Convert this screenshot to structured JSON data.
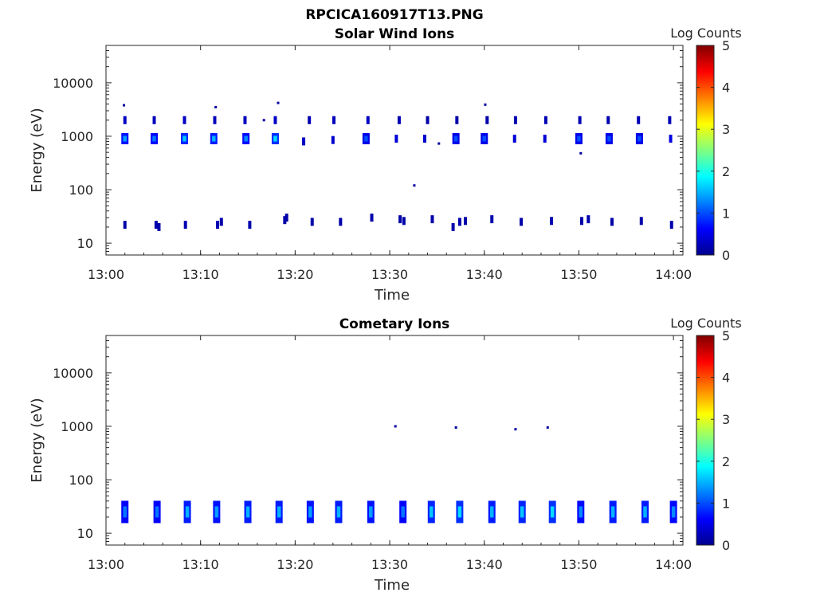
{
  "figure_title": "RPCICA160917T13.PNG",
  "colorbar": {
    "label": "Log Counts",
    "range": [
      0,
      5
    ],
    "ticks": [
      "0",
      "1",
      "2",
      "3",
      "4",
      "5"
    ],
    "colormap": [
      "#00008f",
      "#0000ff",
      "#0080ff",
      "#00ffff",
      "#80ff80",
      "#ffff00",
      "#ff8000",
      "#ff0000",
      "#800000"
    ]
  },
  "chart_data": [
    {
      "type": "heatmap",
      "title": "Solar Wind Ions",
      "xlabel": "Time",
      "ylabel": "Energy (eV)",
      "xlim": [
        "13:00",
        "14:01"
      ],
      "ylim": [
        6,
        50000
      ],
      "yscale": "log",
      "xticks": [
        "13:00",
        "13:10",
        "13:20",
        "13:30",
        "13:40",
        "13:50",
        "14:00"
      ],
      "yticks": [
        "10",
        "100",
        "1000",
        "10000"
      ],
      "value_label": "Log Counts",
      "cells": [
        [
          2.0,
          2000,
          0.6
        ],
        [
          2.0,
          900,
          1.4
        ],
        [
          2.0,
          22,
          0.3
        ],
        [
          1.9,
          3800,
          0.2
        ],
        [
          5.1,
          2000,
          0.5
        ],
        [
          5.1,
          900,
          1.2
        ],
        [
          5.3,
          22,
          0.3
        ],
        [
          5.6,
          20,
          0.3
        ],
        [
          8.3,
          2000,
          0.6
        ],
        [
          8.3,
          900,
          1.6
        ],
        [
          8.4,
          22,
          0.4
        ],
        [
          11.5,
          2000,
          0.5
        ],
        [
          11.4,
          900,
          1.5
        ],
        [
          11.8,
          22,
          0.4
        ],
        [
          12.2,
          25,
          0.3
        ],
        [
          11.6,
          3500,
          0.2
        ],
        [
          14.7,
          2000,
          0.5
        ],
        [
          14.8,
          900,
          1.3
        ],
        [
          15.2,
          22,
          0.3
        ],
        [
          16.7,
          2000,
          0.2
        ],
        [
          17.9,
          2000,
          0.6
        ],
        [
          17.9,
          900,
          1.7
        ],
        [
          18.2,
          4200,
          0.2
        ],
        [
          18.9,
          27,
          0.3
        ],
        [
          19.1,
          30,
          0.3
        ],
        [
          20.9,
          800,
          0.6
        ],
        [
          21.5,
          2000,
          0.4
        ],
        [
          21.8,
          25,
          0.3
        ],
        [
          24.1,
          2000,
          0.5
        ],
        [
          24.0,
          850,
          0.7
        ],
        [
          24.8,
          25,
          0.3
        ],
        [
          27.7,
          2000,
          0.6
        ],
        [
          27.5,
          900,
          1.0
        ],
        [
          28.1,
          30,
          0.3
        ],
        [
          30.7,
          900,
          0.8
        ],
        [
          31.0,
          2000,
          0.4
        ],
        [
          32.6,
          120,
          0.2
        ],
        [
          31.1,
          28,
          0.3
        ],
        [
          31.5,
          26,
          0.3
        ],
        [
          33.7,
          900,
          0.7
        ],
        [
          34.0,
          2000,
          0.3
        ],
        [
          34.5,
          28,
          0.3
        ],
        [
          35.2,
          730,
          0.2
        ],
        [
          37.0,
          900,
          1.0
        ],
        [
          37.1,
          2000,
          0.3
        ],
        [
          37.4,
          25,
          0.4
        ],
        [
          38.0,
          26,
          0.3
        ],
        [
          36.7,
          20,
          0.3
        ],
        [
          40.0,
          900,
          1.0
        ],
        [
          40.3,
          2000,
          0.3
        ],
        [
          40.1,
          3900,
          0.2
        ],
        [
          40.8,
          28,
          0.3
        ],
        [
          43.3,
          2000,
          0.4
        ],
        [
          43.2,
          900,
          0.8
        ],
        [
          43.9,
          25,
          0.3
        ],
        [
          46.5,
          2000,
          0.4
        ],
        [
          46.4,
          900,
          0.8
        ],
        [
          47.1,
          26,
          0.4
        ],
        [
          50.1,
          2000,
          0.4
        ],
        [
          50.0,
          900,
          1.0
        ],
        [
          50.2,
          480,
          0.2
        ],
        [
          50.3,
          26,
          0.3
        ],
        [
          51.0,
          28,
          0.3
        ],
        [
          53.1,
          2000,
          0.4
        ],
        [
          53.2,
          900,
          1.0
        ],
        [
          53.5,
          25,
          0.3
        ],
        [
          56.3,
          2000,
          0.4
        ],
        [
          56.4,
          900,
          1.0
        ],
        [
          56.6,
          26,
          0.3
        ],
        [
          59.6,
          2000,
          0.4
        ],
        [
          59.7,
          900,
          0.9
        ],
        [
          59.8,
          22,
          0.3
        ]
      ]
    },
    {
      "type": "heatmap",
      "title": "Cometary Ions",
      "xlabel": "Time",
      "ylabel": "Energy (eV)",
      "xlim": [
        "13:00",
        "14:01"
      ],
      "ylim": [
        6,
        50000
      ],
      "yscale": "log",
      "xticks": [
        "13:00",
        "13:10",
        "13:20",
        "13:30",
        "13:40",
        "13:50",
        "14:00"
      ],
      "yticks": [
        "10",
        "100",
        "1000",
        "10000"
      ],
      "value_label": "Log Counts",
      "cells": [
        [
          2.0,
          25,
          1.2
        ],
        [
          5.4,
          25,
          1.2
        ],
        [
          8.6,
          25,
          1.5
        ],
        [
          11.7,
          25,
          1.4
        ],
        [
          15.0,
          25,
          1.5
        ],
        [
          18.3,
          25,
          1.5
        ],
        [
          21.6,
          25,
          1.4
        ],
        [
          24.6,
          25,
          1.5
        ],
        [
          28.0,
          25,
          1.4
        ],
        [
          31.4,
          25,
          1.2
        ],
        [
          34.4,
          25,
          1.6
        ],
        [
          37.4,
          25,
          1.7
        ],
        [
          40.8,
          25,
          1.5
        ],
        [
          44.0,
          25,
          1.6
        ],
        [
          47.2,
          25,
          1.7
        ],
        [
          50.2,
          25,
          1.3
        ],
        [
          53.6,
          25,
          1.5
        ],
        [
          57.0,
          25,
          1.5
        ],
        [
          60.0,
          25,
          1.3
        ],
        [
          30.6,
          1000,
          0.2
        ],
        [
          37.0,
          950,
          0.2
        ],
        [
          43.3,
          880,
          0.2
        ],
        [
          46.7,
          950,
          0.2
        ]
      ]
    }
  ]
}
